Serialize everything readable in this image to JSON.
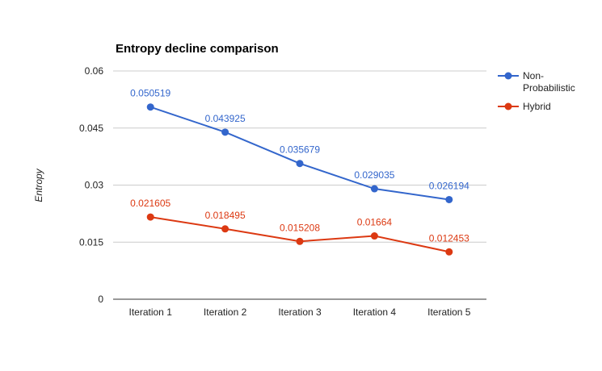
{
  "chart_data": {
    "type": "line",
    "title": "Entropy decline comparison",
    "xlabel": "",
    "ylabel": "Entropy",
    "categories": [
      "Iteration 1",
      "Iteration 2",
      "Iteration 3",
      "Iteration 4",
      "Iteration 5"
    ],
    "ylim": [
      0,
      0.06
    ],
    "yticks": [
      "0",
      "0.015",
      "0.03",
      "0.045",
      "0.06"
    ],
    "grid": true,
    "legend_position": "right",
    "series": [
      {
        "name": "Non-Probabilistic",
        "legend_lines": [
          "Non-",
          "Probabilistic"
        ],
        "color": "#3366cc",
        "values": [
          0.050519,
          0.043925,
          0.035679,
          0.029035,
          0.026194
        ],
        "labels": [
          "0.050519",
          "0.043925",
          "0.035679",
          "0.029035",
          "0.026194"
        ]
      },
      {
        "name": "Hybrid",
        "legend_lines": [
          "Hybrid"
        ],
        "color": "#dc3912",
        "values": [
          0.021605,
          0.018495,
          0.015208,
          0.01664,
          0.012453
        ],
        "labels": [
          "0.021605",
          "0.018495",
          "0.015208",
          "0.01664",
          "0.012453"
        ]
      }
    ]
  }
}
